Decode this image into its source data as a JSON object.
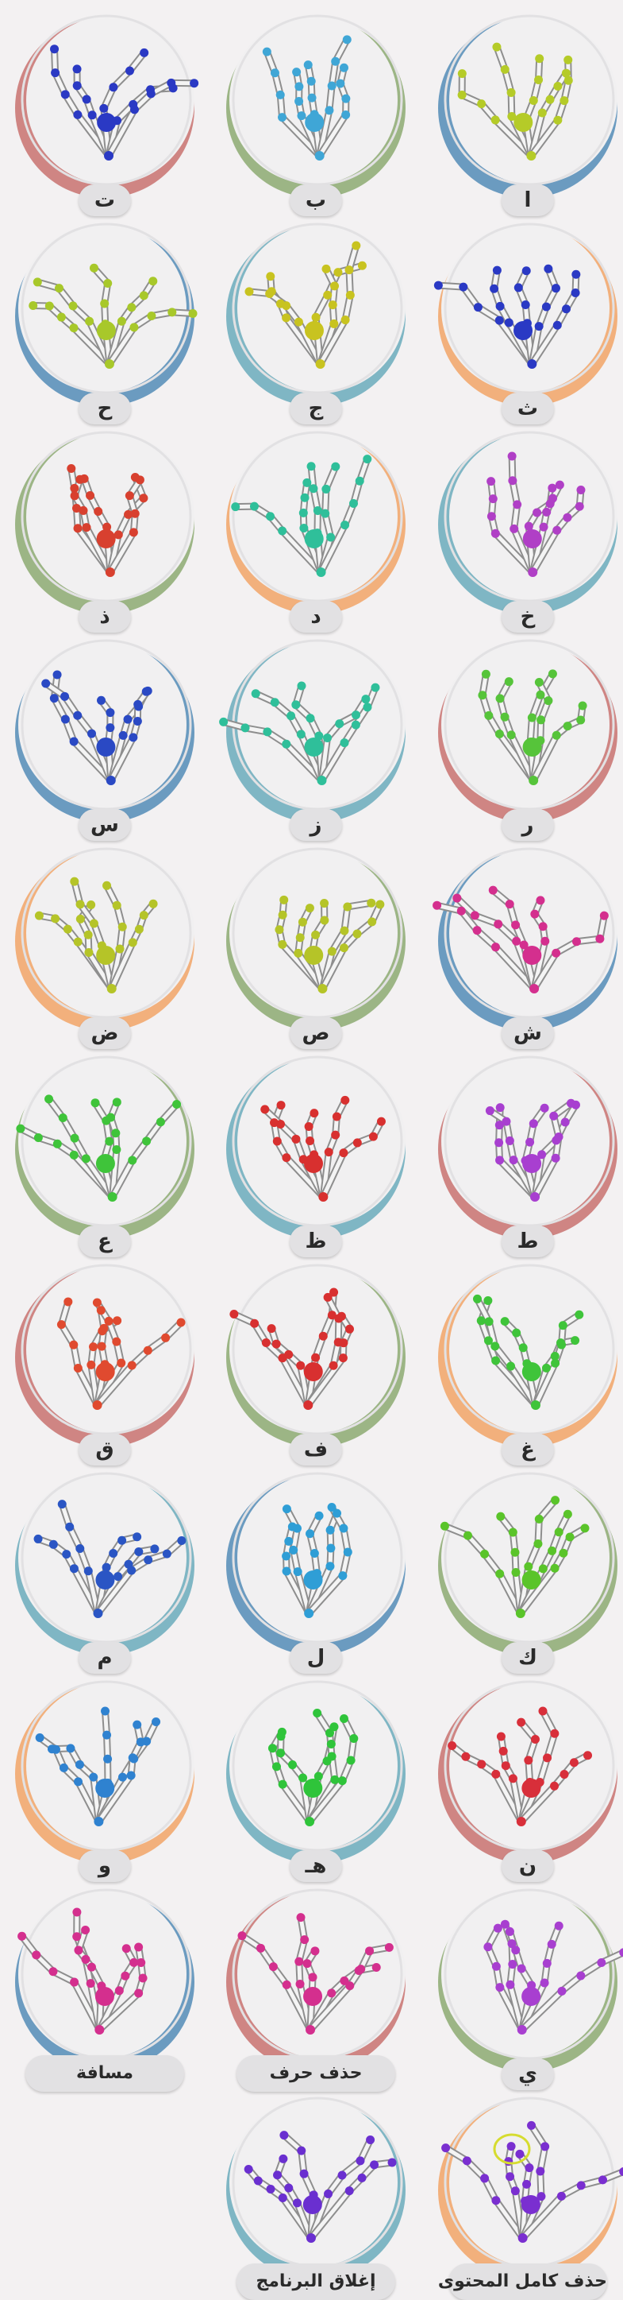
{
  "tiles": [
    {
      "label": "ا",
      "ring": "#6b9bc0",
      "hand": "#b5cb28"
    },
    {
      "label": "ب",
      "ring": "#9cb585",
      "hand": "#3fa6d6"
    },
    {
      "label": "ت",
      "ring": "#cf8583",
      "hand": "#2a39c4"
    },
    {
      "label": "ث",
      "ring": "#f2b07c",
      "hand": "#2a39c4"
    },
    {
      "label": "ج",
      "ring": "#7fb6c4",
      "hand": "#c8c320"
    },
    {
      "label": "ح",
      "ring": "#6b9bc0",
      "hand": "#a8c82a"
    },
    {
      "label": "خ",
      "ring": "#7fb6c4",
      "hand": "#b03fc6"
    },
    {
      "label": "د",
      "ring": "#f2b07c",
      "hand": "#2fbf9a"
    },
    {
      "label": "ذ",
      "ring": "#9cb585",
      "hand": "#d8402f"
    },
    {
      "label": "ر",
      "ring": "#cf8583",
      "hand": "#56c43a"
    },
    {
      "label": "ز",
      "ring": "#7fb6c4",
      "hand": "#2fbf9a"
    },
    {
      "label": "س",
      "ring": "#6b9bc0",
      "hand": "#2a49c4"
    },
    {
      "label": "ش",
      "ring": "#6b9bc0",
      "hand": "#d42f8e"
    },
    {
      "label": "ص",
      "ring": "#9cb585",
      "hand": "#b5c428"
    },
    {
      "label": "ض",
      "ring": "#f2b07c",
      "hand": "#b5c428"
    },
    {
      "label": "ط",
      "ring": "#cf8583",
      "hand": "#a83fd0"
    },
    {
      "label": "ظ",
      "ring": "#7fb6c4",
      "hand": "#d8302f"
    },
    {
      "label": "ع",
      "ring": "#9cb585",
      "hand": "#3fc43a"
    },
    {
      "label": "غ",
      "ring": "#f2b07c",
      "hand": "#3fc43a"
    },
    {
      "label": "ف",
      "ring": "#9cb585",
      "hand": "#d83030"
    },
    {
      "label": "ق",
      "ring": "#cf8583",
      "hand": "#e04a2f"
    },
    {
      "label": "ك",
      "ring": "#9cb585",
      "hand": "#5ac42a"
    },
    {
      "label": "ل",
      "ring": "#6b9bc0",
      "hand": "#2f9ed6"
    },
    {
      "label": "م",
      "ring": "#7fb6c4",
      "hand": "#2a55c4"
    },
    {
      "label": "ن",
      "ring": "#cf8583",
      "hand": "#d82f3a"
    },
    {
      "label": "هـ",
      "ring": "#7fb6c4",
      "hand": "#2fc43a"
    },
    {
      "label": "و",
      "ring": "#f2b07c",
      "hand": "#2f82d0"
    },
    {
      "label": "ي",
      "ring": "#9cb585",
      "hand": "#a83fd0"
    },
    {
      "label": "حذف حرف",
      "ring": "#cf8583",
      "hand": "#d42f8e"
    },
    {
      "label": "مسافة",
      "ring": "#6b9bc0",
      "hand": "#d42f8e"
    },
    {
      "label": "حذف كامل المحتوى",
      "ring": "#f2b07c",
      "hand": "#7a2fd0"
    },
    {
      "label": "إغلاق البرنامج",
      "ring": "#7fb6c4",
      "hand": "#6a2fd0"
    }
  ]
}
